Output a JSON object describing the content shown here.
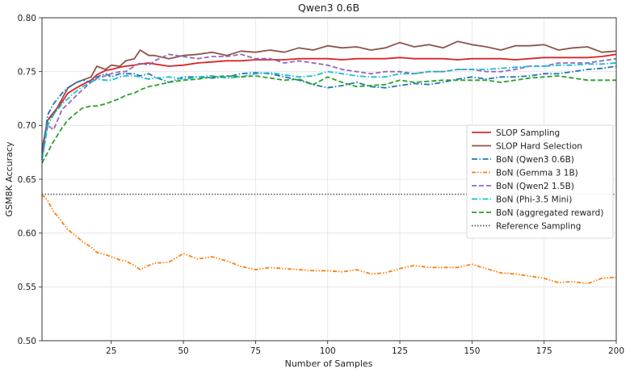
{
  "chart_data": {
    "type": "line",
    "title": "Qwen3 0.6B",
    "xlabel": "Number of Samples",
    "ylabel": "GSM8K Accuracy",
    "xlim": [
      1,
      200
    ],
    "ylim": [
      0.5,
      0.8
    ],
    "xticks": [
      25,
      50,
      75,
      100,
      125,
      150,
      175,
      200
    ],
    "yticks": [
      0.5,
      0.55,
      0.6,
      0.65,
      0.7,
      0.75,
      0.8
    ],
    "grid": true,
    "legend_position": "center-right",
    "reference_line": {
      "name": "Reference Sampling",
      "y": 0.636,
      "color": "#555555",
      "style": "dotted"
    },
    "series": [
      {
        "name": "SLOP Sampling",
        "color": "#d62728",
        "style": "solid",
        "x": [
          1,
          3,
          5,
          8,
          10,
          13,
          15,
          18,
          20,
          23,
          25,
          28,
          30,
          33,
          35,
          38,
          40,
          45,
          50,
          55,
          60,
          65,
          70,
          75,
          80,
          85,
          90,
          95,
          100,
          105,
          110,
          115,
          120,
          125,
          130,
          135,
          140,
          145,
          150,
          155,
          160,
          165,
          170,
          175,
          180,
          185,
          190,
          195,
          200
        ],
        "y": [
          0.675,
          0.705,
          0.712,
          0.722,
          0.73,
          0.735,
          0.738,
          0.742,
          0.747,
          0.751,
          0.752,
          0.754,
          0.755,
          0.756,
          0.757,
          0.758,
          0.757,
          0.755,
          0.756,
          0.758,
          0.759,
          0.76,
          0.76,
          0.761,
          0.761,
          0.761,
          0.762,
          0.762,
          0.762,
          0.761,
          0.762,
          0.762,
          0.762,
          0.763,
          0.762,
          0.762,
          0.762,
          0.761,
          0.762,
          0.762,
          0.762,
          0.761,
          0.762,
          0.763,
          0.763,
          0.763,
          0.763,
          0.764,
          0.766
        ]
      },
      {
        "name": "SLOP Hard Selection",
        "color": "#8c564b",
        "style": "solid",
        "x": [
          1,
          3,
          5,
          8,
          10,
          13,
          15,
          18,
          20,
          23,
          25,
          28,
          30,
          33,
          35,
          38,
          40,
          45,
          50,
          55,
          60,
          65,
          70,
          75,
          80,
          85,
          90,
          95,
          100,
          105,
          110,
          115,
          120,
          125,
          130,
          135,
          140,
          145,
          150,
          155,
          160,
          165,
          170,
          175,
          180,
          185,
          190,
          195,
          200
        ],
        "y": [
          0.678,
          0.705,
          0.71,
          0.725,
          0.735,
          0.74,
          0.742,
          0.745,
          0.755,
          0.752,
          0.756,
          0.755,
          0.76,
          0.762,
          0.77,
          0.765,
          0.765,
          0.762,
          0.765,
          0.766,
          0.768,
          0.765,
          0.769,
          0.768,
          0.77,
          0.768,
          0.772,
          0.77,
          0.774,
          0.772,
          0.773,
          0.77,
          0.772,
          0.777,
          0.773,
          0.775,
          0.772,
          0.778,
          0.775,
          0.773,
          0.77,
          0.774,
          0.774,
          0.775,
          0.77,
          0.772,
          0.773,
          0.768,
          0.769
        ]
      },
      {
        "name": "BoN (Qwen3 0.6B)",
        "color": "#1f77b4",
        "style": "dashdot",
        "x": [
          1,
          3,
          5,
          8,
          10,
          13,
          15,
          18,
          20,
          23,
          25,
          28,
          30,
          33,
          35,
          38,
          40,
          45,
          50,
          55,
          60,
          65,
          70,
          75,
          80,
          85,
          90,
          95,
          100,
          105,
          110,
          115,
          120,
          125,
          130,
          135,
          140,
          145,
          150,
          155,
          160,
          165,
          170,
          175,
          180,
          185,
          190,
          195,
          200
        ],
        "y": [
          0.67,
          0.71,
          0.72,
          0.73,
          0.735,
          0.74,
          0.742,
          0.74,
          0.745,
          0.748,
          0.745,
          0.748,
          0.748,
          0.748,
          0.746,
          0.748,
          0.745,
          0.74,
          0.745,
          0.745,
          0.744,
          0.745,
          0.748,
          0.749,
          0.748,
          0.745,
          0.742,
          0.738,
          0.735,
          0.737,
          0.74,
          0.736,
          0.735,
          0.737,
          0.739,
          0.738,
          0.74,
          0.743,
          0.745,
          0.743,
          0.745,
          0.745,
          0.746,
          0.748,
          0.748,
          0.75,
          0.752,
          0.753,
          0.755
        ]
      },
      {
        "name": "BoN (Gemma 3 1B)",
        "color": "#ff7f0e",
        "style": "dashdotdot",
        "x": [
          1,
          3,
          5,
          8,
          10,
          13,
          15,
          18,
          20,
          23,
          25,
          28,
          30,
          33,
          35,
          38,
          40,
          45,
          50,
          55,
          60,
          65,
          70,
          75,
          80,
          85,
          90,
          95,
          100,
          105,
          110,
          115,
          120,
          125,
          130,
          135,
          140,
          145,
          150,
          155,
          160,
          165,
          170,
          175,
          180,
          185,
          190,
          195,
          200
        ],
        "y": [
          0.636,
          0.63,
          0.62,
          0.61,
          0.603,
          0.597,
          0.592,
          0.587,
          0.582,
          0.58,
          0.578,
          0.575,
          0.574,
          0.57,
          0.566,
          0.57,
          0.572,
          0.573,
          0.581,
          0.576,
          0.578,
          0.574,
          0.569,
          0.566,
          0.568,
          0.567,
          0.566,
          0.565,
          0.565,
          0.564,
          0.566,
          0.562,
          0.563,
          0.567,
          0.57,
          0.568,
          0.568,
          0.568,
          0.571,
          0.567,
          0.563,
          0.562,
          0.56,
          0.558,
          0.554,
          0.555,
          0.553,
          0.558,
          0.559
        ]
      },
      {
        "name": "BoN (Qwen2 1.5B)",
        "color": "#9467bd",
        "style": "dashed",
        "x": [
          1,
          3,
          5,
          8,
          10,
          13,
          15,
          18,
          20,
          23,
          25,
          28,
          30,
          33,
          35,
          38,
          40,
          45,
          50,
          55,
          60,
          65,
          70,
          75,
          80,
          85,
          90,
          95,
          100,
          105,
          110,
          115,
          120,
          125,
          130,
          135,
          140,
          145,
          150,
          155,
          160,
          165,
          170,
          175,
          180,
          185,
          190,
          195,
          200
        ],
        "y": [
          0.668,
          0.7,
          0.696,
          0.715,
          0.72,
          0.728,
          0.733,
          0.74,
          0.744,
          0.746,
          0.748,
          0.75,
          0.75,
          0.755,
          0.758,
          0.756,
          0.76,
          0.766,
          0.764,
          0.762,
          0.764,
          0.764,
          0.766,
          0.762,
          0.762,
          0.758,
          0.76,
          0.758,
          0.756,
          0.752,
          0.75,
          0.748,
          0.75,
          0.75,
          0.748,
          0.75,
          0.75,
          0.752,
          0.752,
          0.75,
          0.75,
          0.752,
          0.755,
          0.755,
          0.758,
          0.758,
          0.758,
          0.76,
          0.762
        ]
      },
      {
        "name": "BoN (Phi-3.5 Mini)",
        "color": "#17becf",
        "style": "dashdot",
        "x": [
          1,
          3,
          5,
          8,
          10,
          13,
          15,
          18,
          20,
          23,
          25,
          28,
          30,
          33,
          35,
          38,
          40,
          45,
          50,
          55,
          60,
          65,
          70,
          75,
          80,
          85,
          90,
          95,
          100,
          105,
          110,
          115,
          120,
          125,
          130,
          135,
          140,
          145,
          150,
          155,
          160,
          165,
          170,
          175,
          180,
          185,
          190,
          195,
          200
        ],
        "y": [
          0.668,
          0.7,
          0.71,
          0.72,
          0.725,
          0.732,
          0.736,
          0.74,
          0.743,
          0.742,
          0.742,
          0.745,
          0.746,
          0.746,
          0.745,
          0.743,
          0.744,
          0.745,
          0.743,
          0.745,
          0.746,
          0.744,
          0.745,
          0.748,
          0.749,
          0.747,
          0.745,
          0.746,
          0.75,
          0.748,
          0.746,
          0.745,
          0.745,
          0.748,
          0.748,
          0.75,
          0.75,
          0.752,
          0.752,
          0.752,
          0.753,
          0.754,
          0.755,
          0.755,
          0.756,
          0.756,
          0.757,
          0.757,
          0.758
        ]
      },
      {
        "name": "BoN (aggregated reward)",
        "color": "#2ca02c",
        "style": "dashed",
        "x": [
          1,
          3,
          5,
          8,
          10,
          13,
          15,
          18,
          20,
          23,
          25,
          28,
          30,
          33,
          35,
          38,
          40,
          45,
          50,
          55,
          60,
          65,
          70,
          75,
          80,
          85,
          90,
          95,
          100,
          105,
          110,
          115,
          120,
          125,
          130,
          135,
          140,
          145,
          150,
          155,
          160,
          165,
          170,
          175,
          180,
          185,
          190,
          195,
          200
        ],
        "y": [
          0.665,
          0.675,
          0.685,
          0.698,
          0.705,
          0.712,
          0.716,
          0.718,
          0.718,
          0.72,
          0.722,
          0.725,
          0.728,
          0.73,
          0.733,
          0.736,
          0.737,
          0.74,
          0.742,
          0.743,
          0.745,
          0.746,
          0.745,
          0.746,
          0.744,
          0.742,
          0.743,
          0.738,
          0.745,
          0.74,
          0.736,
          0.737,
          0.738,
          0.742,
          0.74,
          0.741,
          0.742,
          0.742,
          0.742,
          0.742,
          0.74,
          0.742,
          0.744,
          0.745,
          0.746,
          0.744,
          0.742,
          0.742,
          0.742
        ]
      }
    ]
  }
}
